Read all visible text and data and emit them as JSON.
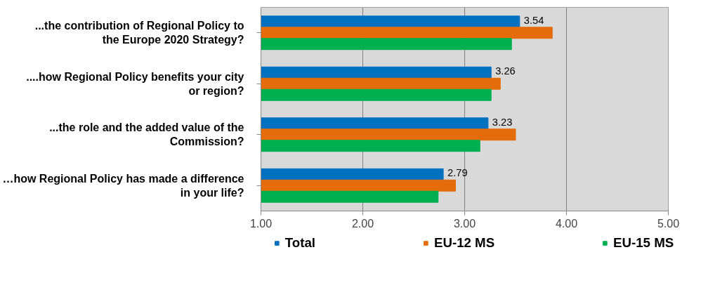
{
  "chart_data": {
    "type": "bar",
    "orientation": "horizontal",
    "categories": [
      "...the contribution of Regional Policy to the Europe 2020 Strategy?",
      "....how Regional Policy benefits your city or region?",
      "...the role and the added value of the Commission?",
      "…how Regional Policy has made a difference in your life?"
    ],
    "series": [
      {
        "name": "Total",
        "color": "#0070c0",
        "values": [
          3.54,
          3.26,
          3.23,
          2.79
        ],
        "value_labels": [
          "3.54",
          "3.26",
          "3.23",
          "2.79"
        ]
      },
      {
        "name": "EU-12 MS",
        "color": "#e46c0a",
        "values": [
          3.86,
          3.35,
          3.5,
          2.91
        ]
      },
      {
        "name": "EU-15 MS",
        "color": "#00b050",
        "values": [
          3.46,
          3.26,
          3.15,
          2.74
        ]
      }
    ],
    "xlim": [
      1,
      5
    ],
    "xticks": [
      {
        "value": 1,
        "label": "1.00"
      },
      {
        "value": 2,
        "label": "2.00"
      },
      {
        "value": 3,
        "label": "3.00"
      },
      {
        "value": 4,
        "label": "4.00"
      },
      {
        "value": 5,
        "label": "5.00"
      }
    ],
    "grid": "x",
    "legend": "bottom"
  }
}
